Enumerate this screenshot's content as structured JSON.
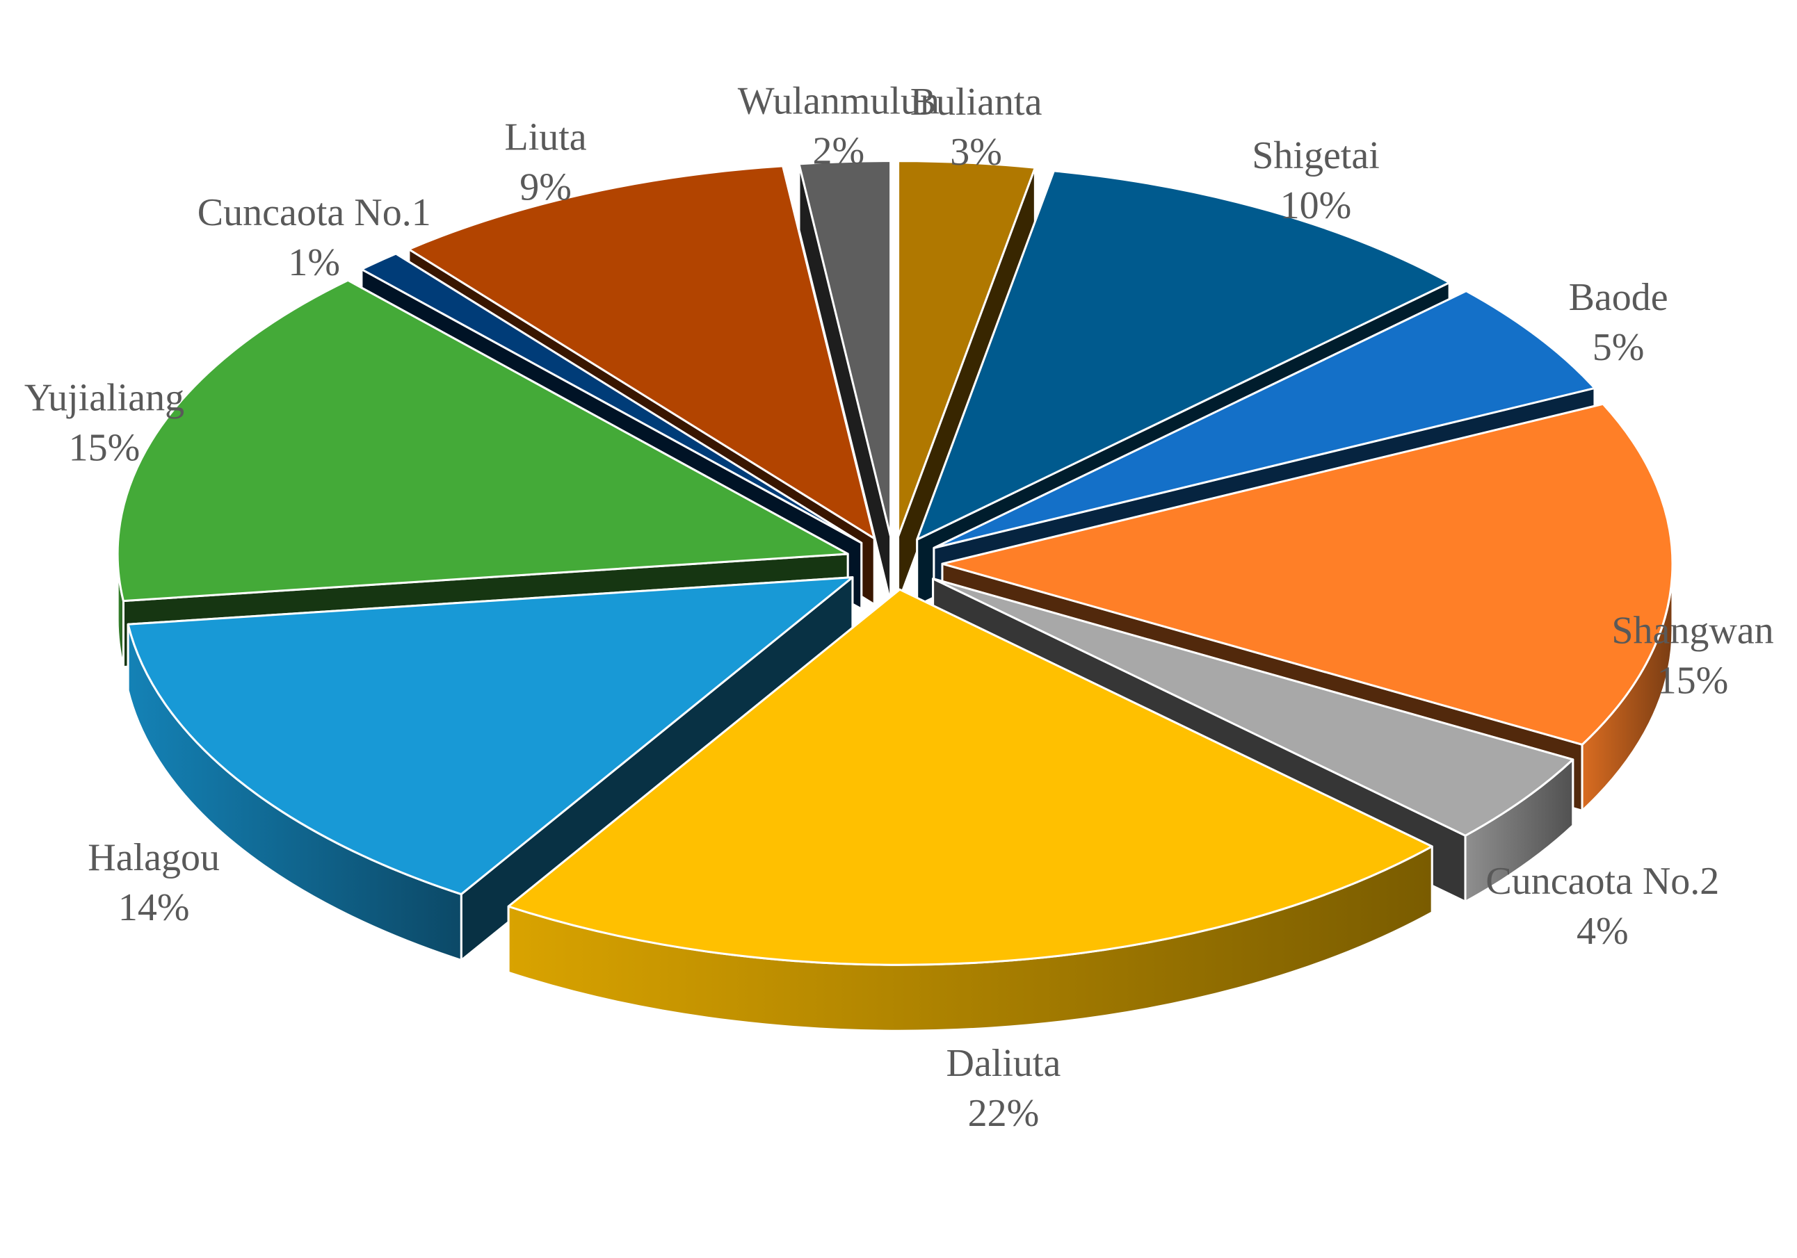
{
  "chart_data": {
    "type": "pie",
    "style": "3d-exploded",
    "categories": [
      "Bulianta",
      "Shigetai",
      "Baode",
      "Shangwan",
      "Cuncaota No.2",
      "Daliuta",
      "Halagou",
      "Yujialiang",
      "Cuncaota No.1",
      "Liuta",
      "Wulanmulun"
    ],
    "values": [
      3,
      10,
      5,
      15,
      4,
      22,
      14,
      15,
      1,
      9,
      2
    ],
    "value_labels": [
      "3%",
      "10%",
      "5%",
      "15%",
      "4%",
      "22%",
      "14%",
      "15%",
      "1%",
      "9%",
      "2%"
    ],
    "colors": [
      "#B07800",
      "#005A8E",
      "#1470C8",
      "#FF7F27",
      "#A8A8A8",
      "#FFC000",
      "#1899D6",
      "#44AA38",
      "#003C78",
      "#B24400",
      "#5E5E5E"
    ],
    "legend": "none",
    "data_labels": "outside"
  }
}
